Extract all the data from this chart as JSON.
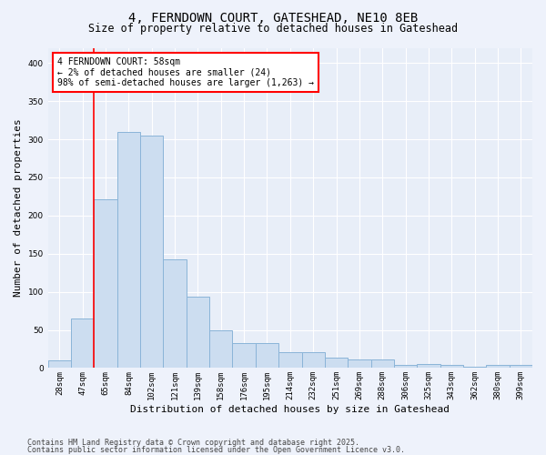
{
  "title1": "4, FERNDOWN COURT, GATESHEAD, NE10 8EB",
  "title2": "Size of property relative to detached houses in Gateshead",
  "xlabel": "Distribution of detached houses by size in Gateshead",
  "ylabel": "Number of detached properties",
  "categories": [
    "28sqm",
    "47sqm",
    "65sqm",
    "84sqm",
    "102sqm",
    "121sqm",
    "139sqm",
    "158sqm",
    "176sqm",
    "195sqm",
    "214sqm",
    "232sqm",
    "251sqm",
    "269sqm",
    "288sqm",
    "306sqm",
    "325sqm",
    "343sqm",
    "362sqm",
    "380sqm",
    "399sqm"
  ],
  "values": [
    10,
    65,
    221,
    310,
    305,
    143,
    93,
    50,
    33,
    33,
    21,
    21,
    14,
    11,
    11,
    4,
    5,
    4,
    2,
    4,
    4
  ],
  "bar_color": "#ccddf0",
  "bar_edge_color": "#8ab4d8",
  "red_line_x": 1.5,
  "annotation_text": "4 FERNDOWN COURT: 58sqm\n← 2% of detached houses are smaller (24)\n98% of semi-detached houses are larger (1,263) →",
  "annotation_box_color": "white",
  "annotation_box_edge": "red",
  "footer1": "Contains HM Land Registry data © Crown copyright and database right 2025.",
  "footer2": "Contains public sector information licensed under the Open Government Licence v3.0.",
  "ylim": [
    0,
    420
  ],
  "bg_color": "#eef2fb",
  "plot_bg_color": "#e8eef8",
  "grid_color": "white",
  "title_fontsize": 10,
  "subtitle_fontsize": 8.5,
  "tick_fontsize": 6.5,
  "label_fontsize": 8,
  "footer_fontsize": 6,
  "ann_fontsize": 7
}
